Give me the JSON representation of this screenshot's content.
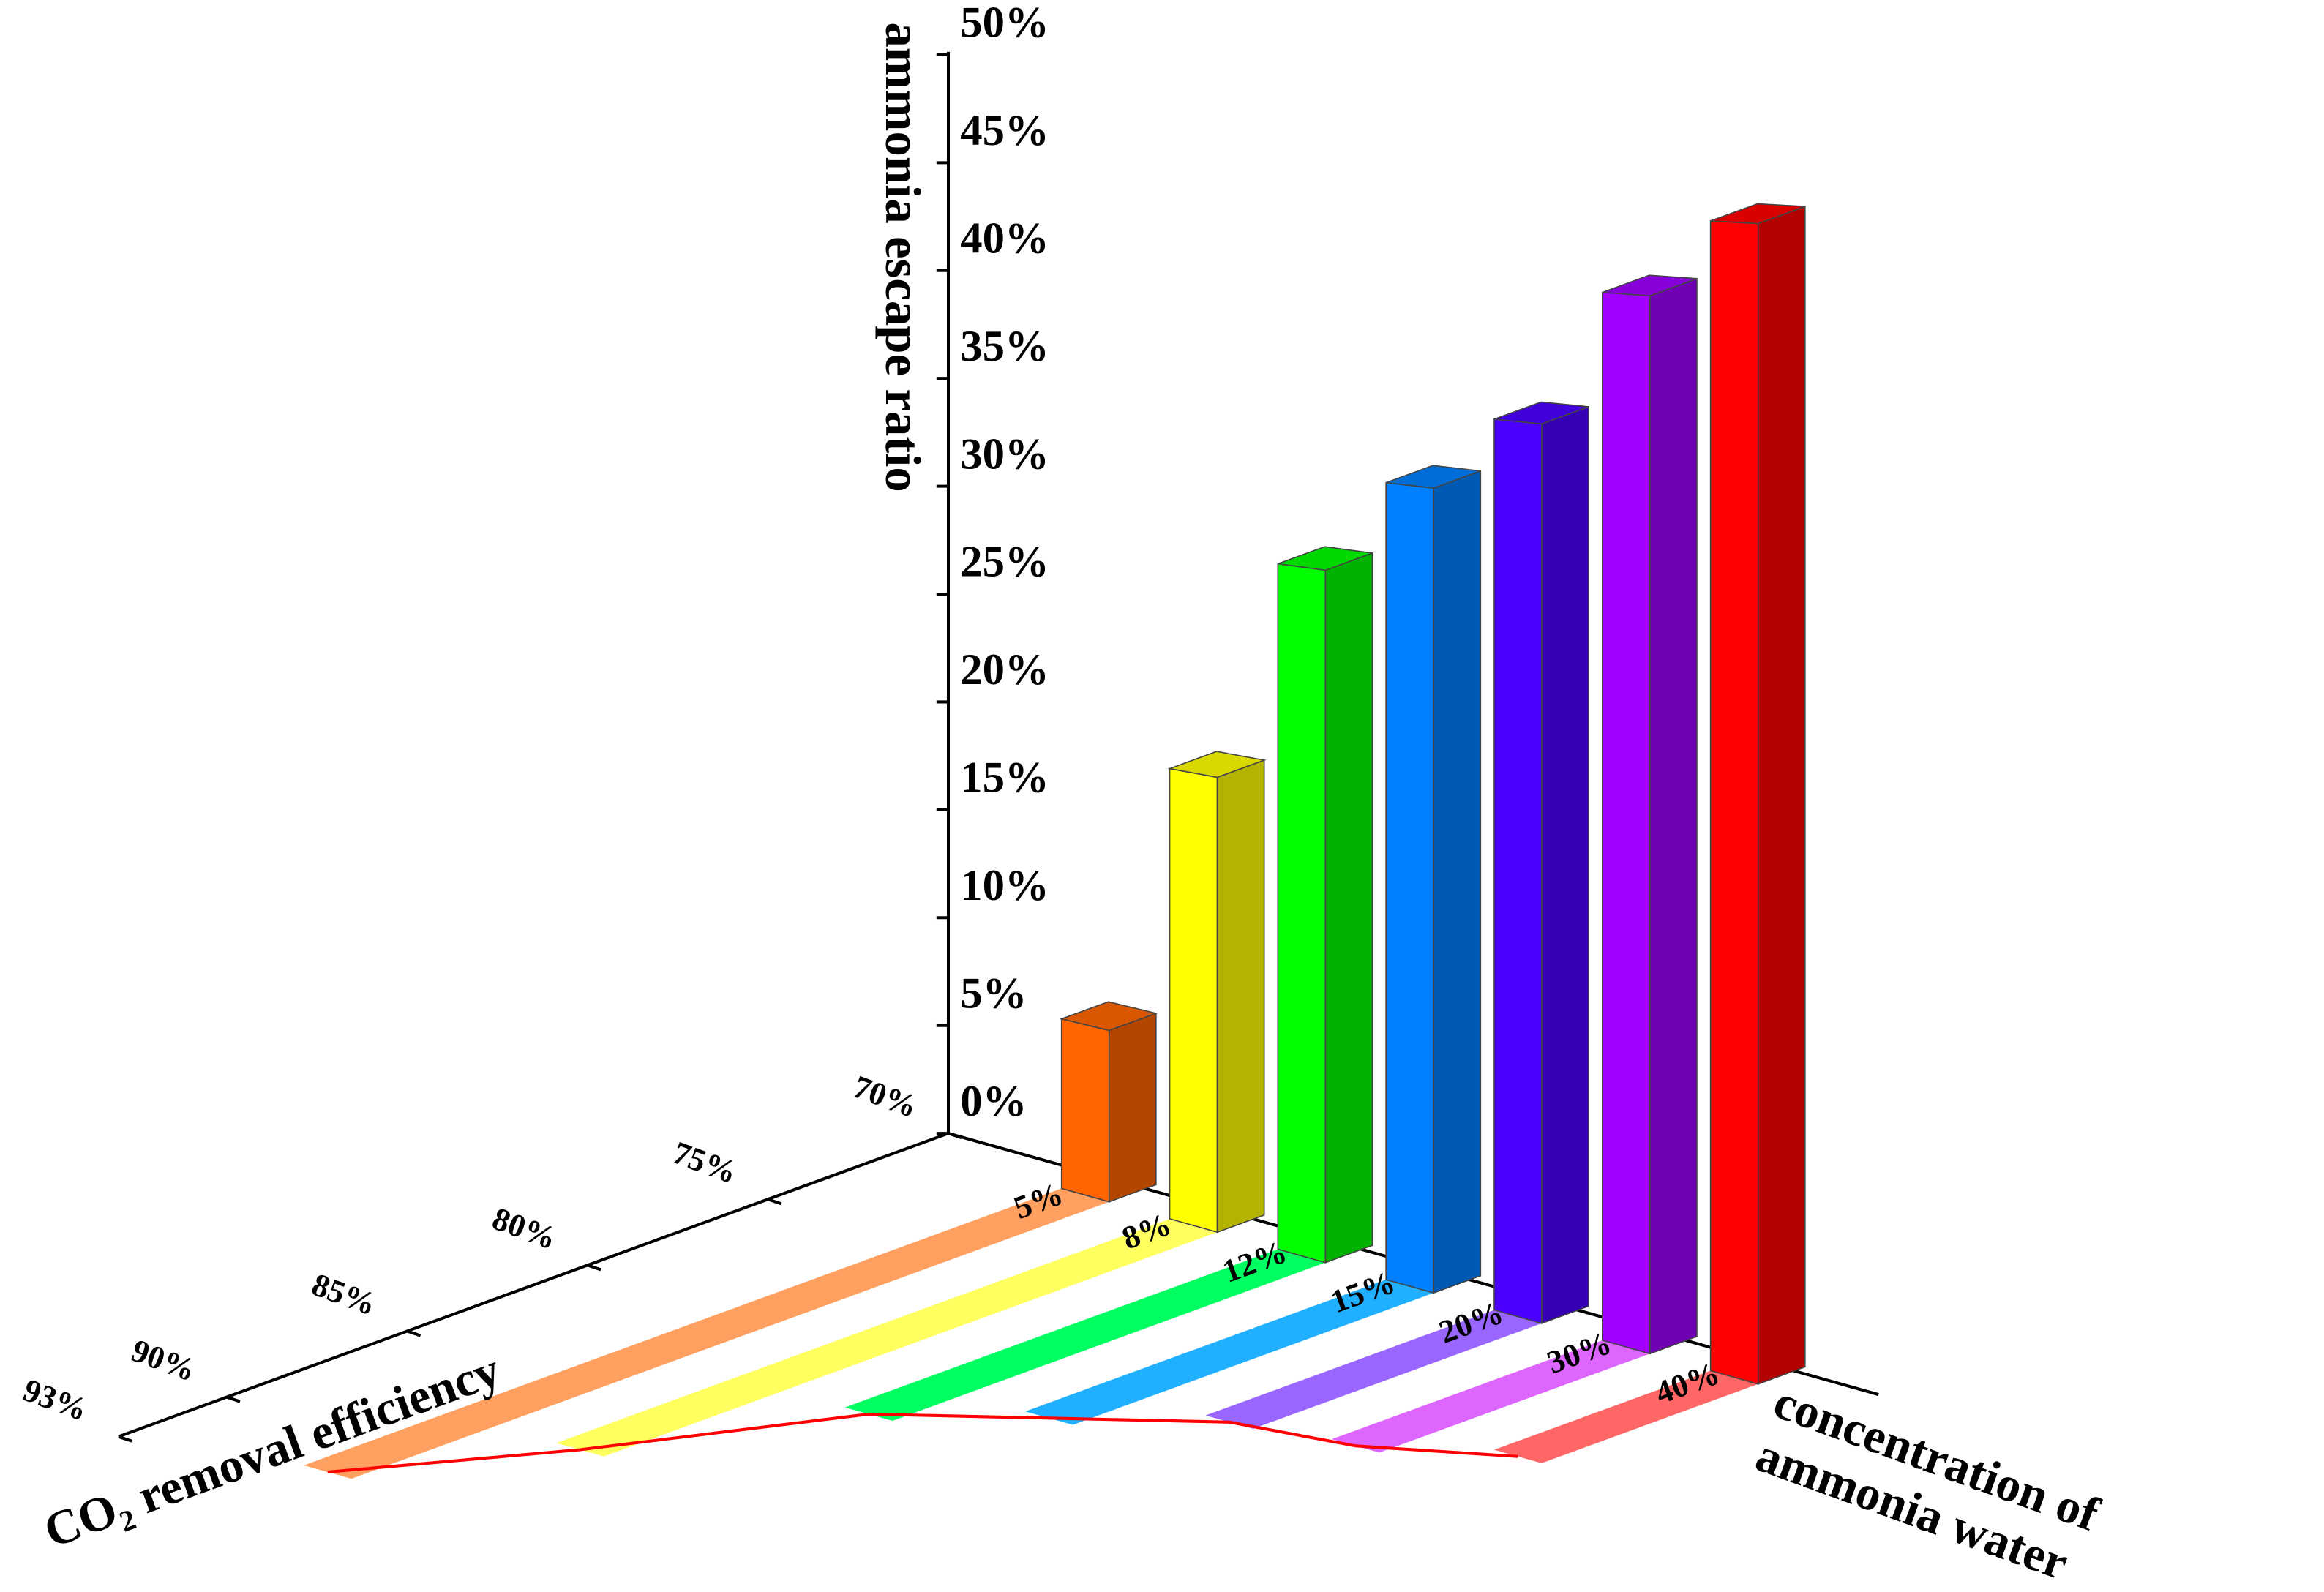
{
  "chart_data": {
    "type": "bar3d",
    "ylabel": "ammonia escape ratio",
    "zlabel": "CO₂ removal efficiency",
    "xlabel": [
      "concentration of",
      "ammonia water"
    ],
    "categories": [
      "5%",
      "8%",
      "12%",
      "15%",
      "20%",
      "30%",
      "40%"
    ],
    "values": [
      7.6,
      19.7,
      29.3,
      33.3,
      36.4,
      41.9,
      45
    ],
    "efficiency": [
      92,
      88,
      83,
      81,
      79,
      78.5,
      77
    ],
    "colors": [
      "#ff6600",
      "#ffff00",
      "#00ff00",
      "#0080ff",
      "#4b00ff",
      "#a000ff",
      "#ff0000"
    ],
    "ribbon_colors": [
      "#ffa060",
      "#ffff60",
      "#00ff60",
      "#20b0ff",
      "#9966ff",
      "#dd66ff",
      "#ff6666"
    ],
    "line_color": "#ff0000",
    "ylim": [
      0,
      50
    ],
    "yticks": [
      {
        "value": 0,
        "label": "0%"
      },
      {
        "value": 5,
        "label": "5%"
      },
      {
        "value": 10,
        "label": "10%"
      },
      {
        "value": 15,
        "label": "15%"
      },
      {
        "value": 20,
        "label": "20%"
      },
      {
        "value": 25,
        "label": "25%"
      },
      {
        "value": 30,
        "label": "30%"
      },
      {
        "value": 35,
        "label": "35%"
      },
      {
        "value": 40,
        "label": "40%"
      },
      {
        "value": 45,
        "label": "45%"
      },
      {
        "value": 50,
        "label": "50%"
      }
    ],
    "zlim": [
      70,
      93
    ],
    "zticks": [
      {
        "value": 70,
        "label": "70%"
      },
      {
        "value": 75,
        "label": "75%"
      },
      {
        "value": 80,
        "label": "80%"
      },
      {
        "value": 85,
        "label": "85%"
      },
      {
        "value": 90,
        "label": "90%"
      },
      {
        "value": 93,
        "label": "93%"
      }
    ]
  }
}
